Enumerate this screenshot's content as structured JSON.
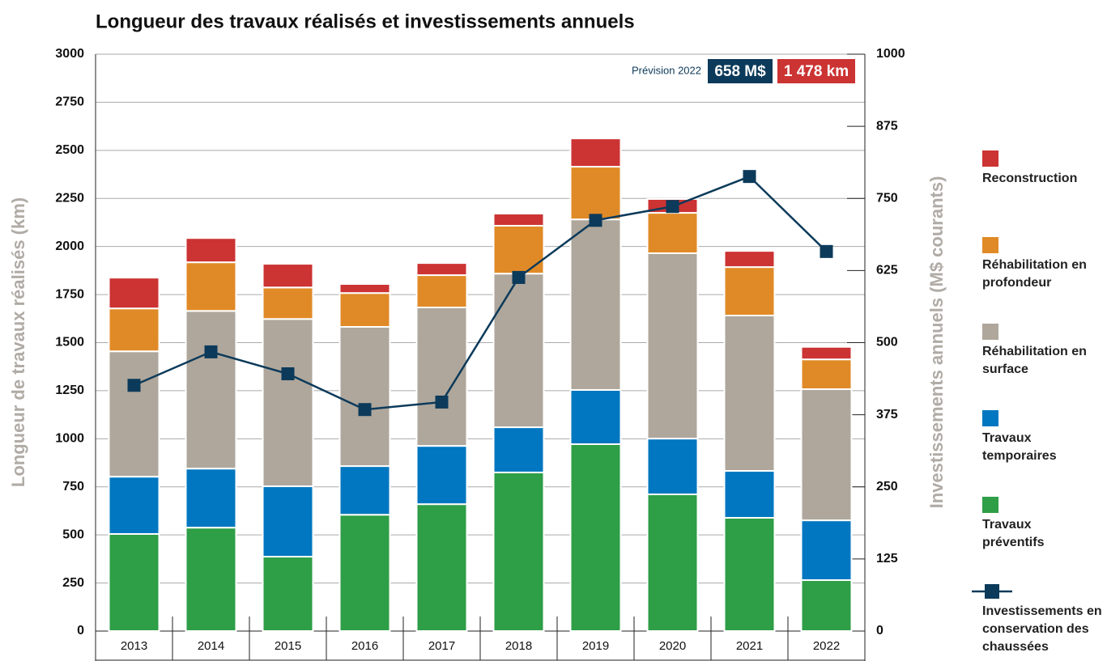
{
  "chart_data": {
    "type": "bar",
    "title": "Longueur des travaux réalisés et investissements annuels",
    "ylabel": "Longueur de travaux réalisés (km)",
    "y2label": "Investissements annuels (M$ courants)",
    "annotations": [
      "Prévision 2022",
      "658 M$",
      "1 478 km"
    ],
    "stacked": true,
    "categories": [
      "2013",
      "2014",
      "2015",
      "2016",
      "2017",
      "2018",
      "2019",
      "2020",
      "2021",
      "2022"
    ],
    "series": [
      {
        "name": "Travaux préventifs",
        "color": "#2e9e47",
        "values": [
          505,
          538,
          387,
          605,
          660,
          825,
          972,
          711,
          589,
          265
        ]
      },
      {
        "name": "Travaux temporaires",
        "color": "#0077c0",
        "values": [
          298,
          307,
          366,
          253,
          303,
          235,
          282,
          290,
          244,
          311
        ]
      },
      {
        "name": "Réhabilitation en surface",
        "color": "#afa79c",
        "values": [
          652,
          820,
          870,
          724,
          720,
          799,
          887,
          964,
          808,
          682
        ]
      },
      {
        "name": "Réhabilitation en profondeur",
        "color": "#e08a27",
        "values": [
          223,
          253,
          164,
          176,
          168,
          249,
          274,
          210,
          252,
          155
        ]
      },
      {
        "name": "Reconstruction",
        "color": "#cc3333",
        "values": [
          160,
          126,
          123,
          47,
          63,
          63,
          147,
          72,
          84,
          65
        ]
      },
      {
        "name": "Investissements en conservation des chaussées",
        "color": "#0c3a5a",
        "type": "line",
        "axis": "y2",
        "values": [
          426,
          484,
          446,
          384,
          397,
          613,
          712,
          736,
          788,
          658
        ]
      }
    ],
    "ylim": [
      0,
      3000
    ],
    "yticks": [
      0,
      250,
      500,
      750,
      1000,
      1250,
      1500,
      1750,
      2000,
      2250,
      2500,
      2750,
      3000
    ],
    "y2lim": [
      0,
      1000
    ],
    "y2ticks": [
      0,
      125,
      250,
      375,
      500,
      625,
      750,
      875,
      1000
    ],
    "grid": true
  }
}
